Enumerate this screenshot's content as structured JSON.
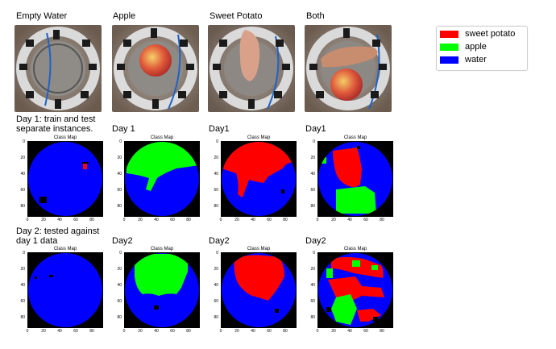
{
  "columns": {
    "empty_water": "Empty Water",
    "apple": "Apple",
    "sweet_potato": "Sweet Potato",
    "both": "Both"
  },
  "rows": {
    "day1_desc_line1": "Day 1: train and test",
    "day1_desc_line2": "separate instances.",
    "day2_desc_line1": "Day 2: tested against",
    "day2_desc_line2": "day 1 data"
  },
  "day_labels": {
    "apple_d1": "Day 1",
    "sweet_potato_d1": "Day1",
    "both_d1": "Day1",
    "apple_d2": "Day2",
    "sweet_potato_d2": "Day2",
    "both_d2": "Day2"
  },
  "plot": {
    "title": "Class Map",
    "y_ticks": [
      "0",
      "20",
      "40",
      "60",
      "80"
    ],
    "x_ticks": [
      "0",
      "20",
      "40",
      "60",
      "80"
    ]
  },
  "legend": {
    "items": [
      {
        "label": "sweet potato",
        "color": "#ff0000"
      },
      {
        "label": "apple",
        "color": "#00ff00"
      },
      {
        "label": "water",
        "color": "#0000ff"
      }
    ]
  },
  "colors": {
    "sweet_potato": "#ff0000",
    "apple": "#00ff00",
    "water": "#0000ff",
    "background": "#000000"
  }
}
